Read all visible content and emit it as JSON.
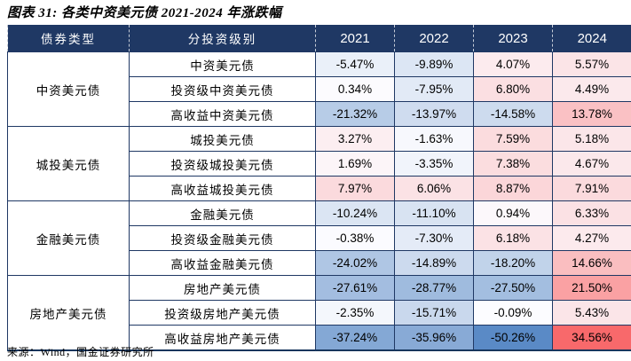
{
  "title": "图表 31: 各类中资美元债 2021-2024 年涨跌幅",
  "source": "来源：Wind，国金证券研究所",
  "colors": {
    "header_bg": "#1F3864",
    "header_text": "#FFFFFF",
    "border": "#1F3864",
    "cell_text": "#000000"
  },
  "chart_data": {
    "type": "table",
    "title": "图表 31: 各类中资美元债 2021-2024 年涨跌幅",
    "columns": [
      "债券类型",
      "分投资级别",
      "2021",
      "2022",
      "2023",
      "2024"
    ],
    "heatmap": {
      "note": "3-color scale on cell backgrounds",
      "min": -50.26,
      "mid": 0,
      "max": 34.56,
      "min_color": "#5A8AC6",
      "mid_color": "#FCFCFF",
      "max_color": "#F8696B"
    },
    "groups": [
      {
        "type": "中资美元债",
        "rows": [
          {
            "label": "中资美元债",
            "values": [
              "-5.47%",
              "-9.89%",
              "4.07%",
              "5.57%"
            ]
          },
          {
            "label": "投资级中资美元债",
            "values": [
              "0.34%",
              "-7.95%",
              "6.80%",
              "4.49%"
            ]
          },
          {
            "label": "高收益中资美元债",
            "values": [
              "-21.32%",
              "-13.97%",
              "-14.58%",
              "13.78%"
            ]
          }
        ]
      },
      {
        "type": "城投美元债",
        "rows": [
          {
            "label": "城投美元债",
            "values": [
              "3.27%",
              "-1.63%",
              "7.59%",
              "5.18%"
            ]
          },
          {
            "label": "投资级城投美元债",
            "values": [
              "1.69%",
              "-3.35%",
              "7.38%",
              "4.67%"
            ]
          },
          {
            "label": "高收益城投美元债",
            "values": [
              "7.97%",
              "6.06%",
              "8.87%",
              "7.91%"
            ]
          }
        ]
      },
      {
        "type": "金融美元债",
        "rows": [
          {
            "label": "金融美元债",
            "values": [
              "-10.24%",
              "-11.10%",
              "0.94%",
              "6.33%"
            ]
          },
          {
            "label": "投资级金融美元债",
            "values": [
              "-0.38%",
              "-7.30%",
              "6.18%",
              "4.27%"
            ]
          },
          {
            "label": "高收益金融美元债",
            "values": [
              "-24.02%",
              "-14.89%",
              "-18.20%",
              "14.66%"
            ]
          }
        ]
      },
      {
        "type": "房地产美元债",
        "rows": [
          {
            "label": "房地产美元债",
            "values": [
              "-27.61%",
              "-28.77%",
              "-27.50%",
              "21.50%"
            ]
          },
          {
            "label": "投资级房地产美元债",
            "values": [
              "-2.35%",
              "-15.71%",
              "-0.09%",
              "5.43%"
            ]
          },
          {
            "label": "高收益房地产美元债",
            "values": [
              "-37.24%",
              "-35.96%",
              "-50.26%",
              "34.56%"
            ]
          }
        ]
      }
    ]
  }
}
